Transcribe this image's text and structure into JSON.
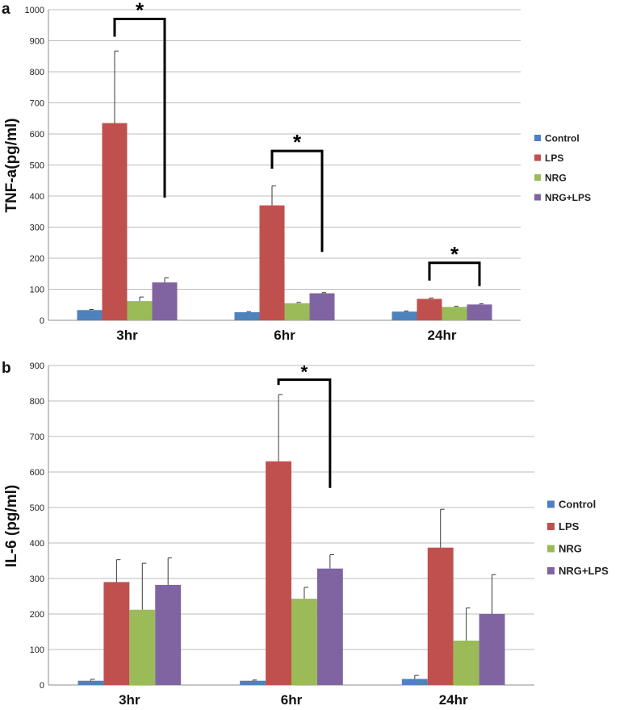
{
  "colors": {
    "Control": "#4f81bd",
    "LPS": "#c0504d",
    "NRG": "#9bbb59",
    "NRG+LPS": "#8064a2"
  },
  "chart_data": [
    {
      "type": "bar",
      "panel_label": "a",
      "title": "",
      "xlabel": "",
      "ylabel": "TNF-a(pg/ml)",
      "ylim": [
        0,
        1000
      ],
      "ytick_step": 100,
      "yticks": [
        "0",
        "100",
        "200",
        "300",
        "400",
        "500",
        "600",
        "700",
        "800",
        "900",
        "1000"
      ],
      "grid": true,
      "legend": "right",
      "categories": [
        "3hr",
        "6hr",
        "24hr"
      ],
      "series": [
        {
          "name": "Control",
          "values": [
            33,
            26,
            28
          ],
          "errors": [
            2,
            2,
            2
          ]
        },
        {
          "name": "LPS",
          "values": [
            635,
            370,
            69
          ],
          "errors": [
            232,
            63,
            3
          ]
        },
        {
          "name": "NRG",
          "values": [
            62,
            55,
            43
          ],
          "errors": [
            13,
            3,
            2
          ]
        },
        {
          "name": "NRG+LPS",
          "values": [
            122,
            87,
            51
          ],
          "errors": [
            15,
            2,
            2
          ]
        }
      ],
      "annotations": [
        {
          "text": "*",
          "category": "3hr",
          "from_series": "LPS",
          "to_series": "NRG+LPS",
          "level": 970,
          "drop_to": 395
        },
        {
          "text": "*",
          "category": "6hr",
          "from_series": "LPS",
          "to_series": "NRG+LPS",
          "level": 545,
          "drop_to": 220
        },
        {
          "text": "*",
          "category": "24hr",
          "from_series": "LPS",
          "to_series": "NRG+LPS",
          "level": 185,
          "drop_to": 110
        }
      ]
    },
    {
      "type": "bar",
      "panel_label": "b",
      "title": "",
      "xlabel": "",
      "ylabel": "IL-6 (pg/ml)",
      "ylim": [
        0,
        900
      ],
      "ytick_step": 100,
      "yticks": [
        "0",
        "100",
        "200",
        "300",
        "400",
        "500",
        "600",
        "700",
        "800",
        "900"
      ],
      "grid": true,
      "legend": "right",
      "categories": [
        "3hr",
        "6hr",
        "24hr"
      ],
      "series": [
        {
          "name": "Control",
          "values": [
            12,
            12,
            17
          ],
          "errors": [
            4,
            2,
            10
          ]
        },
        {
          "name": "LPS",
          "values": [
            290,
            630,
            387
          ],
          "errors": [
            63,
            188,
            108
          ]
        },
        {
          "name": "NRG",
          "values": [
            212,
            243,
            125
          ],
          "errors": [
            131,
            32,
            92
          ]
        },
        {
          "name": "NRG+LPS",
          "values": [
            282,
            328,
            200
          ],
          "errors": [
            76,
            39,
            111
          ]
        }
      ],
      "annotations": [
        {
          "text": "*",
          "category": "6hr",
          "from_series": "LPS",
          "to_series": "NRG+LPS",
          "level": 860,
          "drop_to": 555
        }
      ]
    }
  ]
}
